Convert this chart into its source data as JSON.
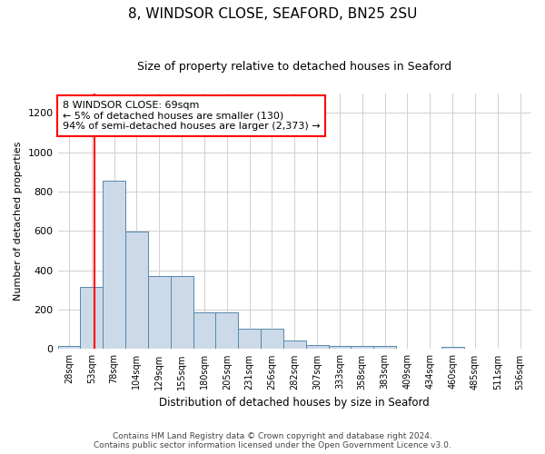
{
  "title": "8, WINDSOR CLOSE, SEAFORD, BN25 2SU",
  "subtitle": "Size of property relative to detached houses in Seaford",
  "xlabel": "Distribution of detached houses by size in Seaford",
  "ylabel": "Number of detached properties",
  "categories": [
    "28sqm",
    "53sqm",
    "78sqm",
    "104sqm",
    "129sqm",
    "155sqm",
    "180sqm",
    "205sqm",
    "231sqm",
    "256sqm",
    "282sqm",
    "307sqm",
    "333sqm",
    "358sqm",
    "383sqm",
    "409sqm",
    "434sqm",
    "460sqm",
    "485sqm",
    "511sqm",
    "536sqm"
  ],
  "values": [
    15,
    315,
    855,
    595,
    370,
    370,
    185,
    185,
    105,
    105,
    45,
    20,
    15,
    15,
    15,
    0,
    0,
    10,
    0,
    0,
    0
  ],
  "bar_color": "#ccd9e8",
  "bar_edge_color": "#5588aa",
  "redline_index": 1,
  "annotation_title": "8 WINDSOR CLOSE: 69sqm",
  "annotation_line1": "← 5% of detached houses are smaller (130)",
  "annotation_line2": "94% of semi-detached houses are larger (2,373) →",
  "ylim": [
    0,
    1300
  ],
  "yticks": [
    0,
    200,
    400,
    600,
    800,
    1000,
    1200
  ],
  "footer_line1": "Contains HM Land Registry data © Crown copyright and database right 2024.",
  "footer_line2": "Contains public sector information licensed under the Open Government Licence v3.0.",
  "background_color": "#ffffff",
  "grid_color": "#d0d0d0"
}
